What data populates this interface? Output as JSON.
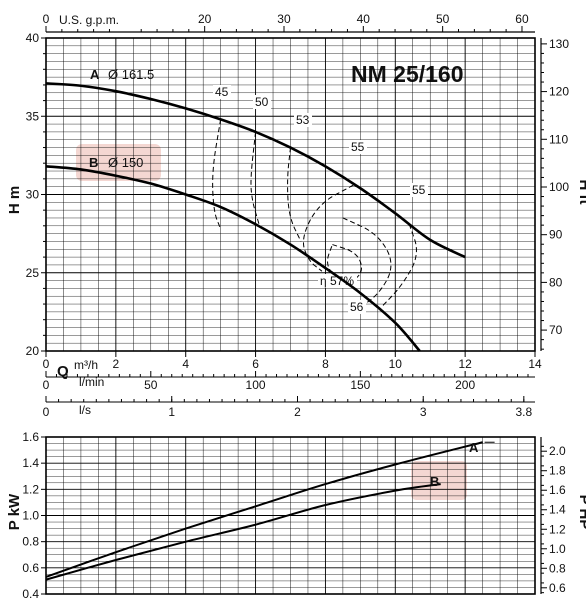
{
  "chart_data": [
    {
      "type": "line",
      "title": "NM 25/160",
      "ylabel": "H m",
      "ylabel_right": "H ft",
      "xlabel_q": "Q",
      "xunit_m3h": "m³/h",
      "xunit_ls": "l/s",
      "xunit_lmin": "l/min",
      "xunit_usgpm": "U.S. g.p.m.",
      "xlim": [
        0,
        14
      ],
      "ylim": [
        20,
        40
      ],
      "ylim_right": [
        65.6,
        131.2
      ],
      "xticks": [
        "0",
        "2",
        "4",
        "6",
        "8",
        "10",
        "12",
        "14"
      ],
      "yticks": [
        "20",
        "25",
        "30",
        "35",
        "40"
      ],
      "yticks_right": [
        "70",
        "80",
        "90",
        "100",
        "110",
        "120",
        "130"
      ],
      "top_ticks_usgpm": [
        "0",
        "20",
        "30",
        "40",
        "50",
        "60"
      ],
      "bottom_ticks_lmin": [
        "0",
        "50",
        "100",
        "150",
        "200"
      ],
      "bottom_ticks_ls": [
        "0",
        "1",
        "2",
        "3",
        "3.8"
      ],
      "series": [
        {
          "name": "A",
          "label": "Ø 161.5",
          "x": [
            0,
            1,
            2,
            3,
            4,
            5,
            6,
            7,
            8,
            9,
            10,
            11,
            12
          ],
          "y": [
            37.1,
            36.95,
            36.6,
            36.1,
            35.5,
            34.8,
            34.0,
            33.0,
            31.8,
            30.4,
            28.8,
            27.1,
            26.0
          ]
        },
        {
          "name": "B",
          "label": "Ø 150",
          "x": [
            0,
            1,
            2,
            3,
            4,
            5,
            6,
            7,
            8,
            9,
            10,
            10.7
          ],
          "y": [
            31.8,
            31.6,
            31.2,
            30.7,
            30.0,
            29.2,
            28.1,
            26.8,
            25.3,
            23.7,
            21.8,
            20.0
          ]
        }
      ],
      "efficiency_labels": [
        {
          "text": "45"
        },
        {
          "text": "50"
        },
        {
          "text": "53"
        },
        {
          "text": "55"
        },
        {
          "text": "55"
        },
        {
          "text": "56"
        },
        {
          "text": "η 57%"
        }
      ],
      "efficiency_curves": [
        [
          [
            5.0,
            34.8
          ],
          [
            4.75,
            31.5
          ],
          [
            4.8,
            28.9
          ],
          [
            5.0,
            27.8
          ]
        ],
        [
          [
            6.0,
            34.0
          ],
          [
            5.85,
            31.0
          ],
          [
            5.9,
            29.6
          ],
          [
            6.1,
            28.1
          ]
        ],
        [
          [
            7.0,
            33.0
          ],
          [
            6.9,
            31.0
          ],
          [
            6.95,
            28.6
          ],
          [
            7.3,
            27.0
          ]
        ],
        [
          [
            8.8,
            30.6
          ],
          [
            7.8,
            29.4
          ],
          [
            7.3,
            27.2
          ],
          [
            7.5,
            25.8
          ],
          [
            7.9,
            25.1
          ]
        ],
        [
          [
            10.4,
            28.1
          ],
          [
            10.7,
            26.2
          ],
          [
            10.2,
            24.2
          ],
          [
            9.6,
            22.8
          ]
        ],
        [
          [
            8.5,
            28.5
          ],
          [
            9.5,
            27.5
          ],
          [
            10.0,
            25.5
          ],
          [
            9.5,
            23.5
          ],
          [
            8.8,
            22.6
          ]
        ],
        [
          [
            8.2,
            26.8
          ],
          [
            8.9,
            26.3
          ],
          [
            9.1,
            25.1
          ],
          [
            8.7,
            24.3
          ],
          [
            8.3,
            24.6
          ],
          [
            8.0,
            25.6
          ],
          [
            8.2,
            26.8
          ]
        ]
      ]
    },
    {
      "type": "line",
      "ylabel": "P kW",
      "ylabel_right": "P HP",
      "xlim": [
        0,
        14
      ],
      "ylim": [
        0.4,
        1.6
      ],
      "yticks": [
        "0.4",
        "0.6",
        "0.8",
        "1.0",
        "1.2",
        "1.4",
        "1.6"
      ],
      "yticks_right": [
        "0.6",
        "0.8",
        "1.0",
        "1.2",
        "1.4",
        "1.6",
        "1.8",
        "2.0"
      ],
      "series": [
        {
          "name": "A",
          "x": [
            0,
            2,
            4,
            6,
            8,
            10,
            12.5
          ],
          "y": [
            0.53,
            0.72,
            0.9,
            1.07,
            1.24,
            1.39,
            1.56
          ]
        },
        {
          "name": "B",
          "x": [
            0,
            2,
            4,
            6,
            8,
            10,
            11.3
          ],
          "y": [
            0.51,
            0.66,
            0.8,
            0.93,
            1.08,
            1.19,
            1.24
          ]
        }
      ]
    }
  ],
  "labels": {
    "curve_a": "A",
    "curve_a_dia": "Ø 161.5",
    "curve_b": "B",
    "curve_b_dia": "Ø 150",
    "power_a": "A",
    "power_b": "B"
  },
  "colors": {
    "line": "#000000",
    "grid": "#000000",
    "highlight": "#f4d7d2"
  }
}
